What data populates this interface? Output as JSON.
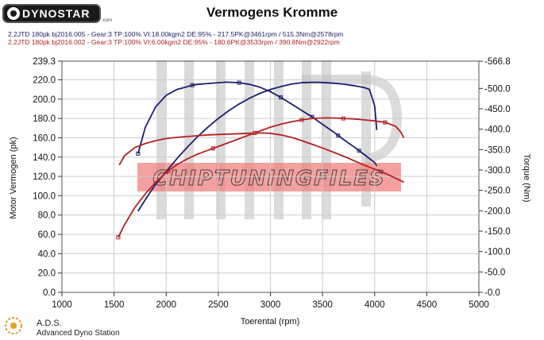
{
  "app": {
    "logo_text": "DYNOSTAR",
    "logo_suffix": ".com",
    "footer_abbrev": "A.D.S.",
    "footer_name": "Advanced Dyno Station"
  },
  "runs": [
    {
      "text": "2.2JTD 180pk bj2016.005 - Gear:3 TP:100% VI:18.00kgm2 DE:95%   - 217.5PK@3461rpm / 515.3Nm@2578rpm",
      "color": "#1c1f6b"
    },
    {
      "text": "2.2JTD 180pk bj2016.002 - Gear:3 TP:100% VI:6.00kgm2 DE:95%   - 180.6PK@3533rpm / 390.8Nm@2922rpm",
      "color": "#b22222"
    }
  ],
  "watermark": {
    "text": "CHIPTUNINGFILES"
  },
  "chart_data": {
    "type": "line",
    "title": "Vermogens Kromme",
    "xlabel": "Toerental (rpm)",
    "ylabel": "Motor Vermogen (pk)",
    "y2label": "Torque (Nm)",
    "xlim": [
      1000,
      5000
    ],
    "ylim": [
      0,
      239.3
    ],
    "y2lim": [
      0,
      566.8
    ],
    "x_ticks": [
      1000,
      1500,
      2000,
      2500,
      3000,
      3500,
      4000,
      4500,
      5000
    ],
    "y_ticks": [
      "0.0",
      "20.0",
      "40.0",
      "60.0",
      "80.0",
      "100.0",
      "120.0",
      "140.0",
      "160.0",
      "180.0",
      "200.0",
      "220.0",
      "239.3"
    ],
    "y2_ticks": [
      "0.0",
      "50.0",
      "100.0",
      "150.0",
      "200.0",
      "250.0",
      "300.0",
      "350.0",
      "400.0",
      "450.0",
      "500.0",
      "566.8"
    ],
    "grid": true,
    "series": [
      {
        "name": "2.2JTD 180pk bj2016.005 vermogen",
        "axis": "left",
        "color": "#1c1f6b",
        "x": [
          1730,
          1800,
          1900,
          2000,
          2100,
          2200,
          2300,
          2400,
          2500,
          2600,
          2700,
          2800,
          2900,
          3000,
          3100,
          3200,
          3300,
          3400,
          3461,
          3500,
          3600,
          3700,
          3800,
          3900,
          3950,
          4000,
          4020
        ],
        "y": [
          84,
          96,
          112,
          125,
          138,
          150,
          161,
          171,
          180,
          188,
          195,
          201,
          206,
          210,
          213,
          215.5,
          217,
          217.4,
          217.5,
          217.3,
          216.5,
          215.5,
          214,
          212,
          210,
          193,
          168
        ]
      },
      {
        "name": "2.2JTD 180pk bj2016.005 torque",
        "axis": "right",
        "color": "#1c1f6b",
        "x": [
          1730,
          1800,
          1900,
          2000,
          2100,
          2200,
          2250,
          2300,
          2400,
          2500,
          2578,
          2700,
          2800,
          2900,
          3000,
          3100,
          3200,
          3300,
          3400,
          3500,
          3600,
          3700,
          3800,
          3900,
          4000,
          4020
        ],
        "y": [
          340,
          405,
          455,
          483,
          497,
          504,
          508,
          510,
          512,
          514,
          515.3,
          514,
          510,
          503,
          492,
          478,
          462,
          446,
          430,
          412,
          394,
          375,
          357,
          338,
          318,
          310
        ],
        "markers_x": [
          1730,
          2250,
          2700,
          3100,
          3400,
          3650,
          3850
        ]
      },
      {
        "name": "2.2JTD 180pk bj2016.002 vermogen",
        "axis": "left",
        "color": "#b22222",
        "x": [
          1540,
          1600,
          1700,
          1800,
          1900,
          2000,
          2100,
          2200,
          2300,
          2400,
          2500,
          2600,
          2700,
          2800,
          2900,
          3000,
          3100,
          3200,
          3300,
          3400,
          3533,
          3600,
          3700,
          3800,
          3900,
          4000,
          4100,
          4200,
          4250,
          4280
        ],
        "y": [
          57,
          70,
          88,
          102,
          114,
          124,
          132,
          138,
          143,
          147,
          151,
          155,
          159,
          163,
          167,
          171,
          174,
          176.5,
          178.5,
          180,
          180.6,
          180.5,
          180,
          179.5,
          178.5,
          177.5,
          176,
          172,
          166,
          160
        ],
        "markers_x": [
          1540,
          2020,
          2450,
          2850,
          3300,
          3700,
          4100
        ]
      },
      {
        "name": "2.2JTD 180pk bj2016.002 torque",
        "axis": "right",
        "color": "#b22222",
        "x": [
          1550,
          1600,
          1700,
          1800,
          1900,
          2000,
          2100,
          2200,
          2300,
          2400,
          2500,
          2600,
          2700,
          2800,
          2922,
          3000,
          3100,
          3200,
          3300,
          3400,
          3500,
          3600,
          3700,
          3800,
          3900,
          4000,
          4100,
          4200,
          4280
        ],
        "y": [
          312,
          335,
          355,
          365,
          372,
          377,
          380,
          382,
          384,
          386,
          387,
          388,
          389,
          390,
          390.8,
          390,
          386,
          380,
          372,
          363,
          354,
          344,
          334,
          323,
          312,
          302,
          292,
          280,
          270
        ]
      }
    ]
  }
}
